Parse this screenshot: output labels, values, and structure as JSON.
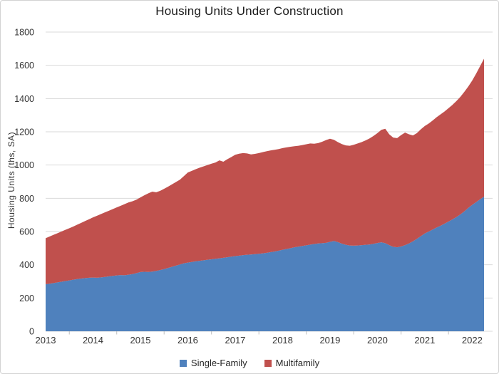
{
  "chart_data": {
    "type": "area",
    "stacked": true,
    "title": "Housing Units Under Construction",
    "ylabel": "Housing Units (ths, SA)",
    "xlabel": "",
    "x_start": "2013-01",
    "x_end": "2022-04",
    "x_frequency": "monthly",
    "x_tick_labels": [
      "2013",
      "2014",
      "2015",
      "2016",
      "2017",
      "2018",
      "2019",
      "2020",
      "2021",
      "2022"
    ],
    "y_ticks": [
      0,
      200,
      400,
      600,
      800,
      1000,
      1200,
      1400,
      1600,
      1800
    ],
    "ylim": [
      0,
      1800
    ],
    "grid": "horizontal",
    "legend_position": "bottom",
    "series": [
      {
        "name": "Single-Family",
        "color": "#4f81bd",
        "values": [
          283,
          286,
          290,
          294,
          298,
          302,
          306,
          310,
          314,
          317,
          320,
          322,
          323,
          322,
          324,
          327,
          330,
          333,
          336,
          338,
          337,
          340,
          344,
          350,
          356,
          358,
          357,
          359,
          363,
          368,
          374,
          381,
          388,
          395,
          402,
          409,
          413,
          417,
          421,
          424,
          427,
          430,
          433,
          436,
          439,
          442,
          445,
          449,
          452,
          455,
          458,
          460,
          462,
          464,
          466,
          469,
          472,
          476,
          480,
          485,
          490,
          495,
          500,
          505,
          509,
          513,
          517,
          521,
          525,
          528,
          530,
          532,
          538,
          543,
          536,
          527,
          520,
          516,
          515,
          516,
          518,
          520,
          522,
          526,
          531,
          535,
          530,
          518,
          508,
          505,
          510,
          518,
          528,
          541,
          556,
          572,
          588,
          600,
          612,
          624,
          635,
          647,
          660,
          673,
          687,
          703,
          721,
          742,
          760,
          777,
          794,
          810
        ]
      },
      {
        "name": "Multifamily",
        "color": "#c0504d",
        "values": [
          277,
          284,
          290,
          296,
          302,
          308,
          314,
          320,
          327,
          335,
          343,
          352,
          362,
          373,
          381,
          388,
          395,
          402,
          409,
          417,
          428,
          435,
          438,
          442,
          449,
          460,
          473,
          481,
          473,
          477,
          483,
          489,
          496,
          503,
          510,
          524,
          542,
          548,
          554,
          560,
          565,
          570,
          575,
          579,
          589,
          578,
          590,
          599,
          610,
          613,
          614,
          610,
          602,
          603,
          606,
          609,
          611,
          612,
          612,
          611,
          612,
          611,
          610,
          608,
          607,
          607,
          608,
          609,
          603,
          604,
          610,
          618,
          620,
          609,
          602,
          599,
          598,
          600,
          607,
          614,
          620,
          628,
          638,
          649,
          661,
          677,
          688,
          667,
          657,
          657,
          670,
          677,
          657,
          637,
          636,
          643,
          647,
          650,
          656,
          664,
          670,
          675,
          682,
          689,
          698,
          707,
          719,
          730,
          748,
          773,
          801,
          830
        ]
      }
    ]
  }
}
